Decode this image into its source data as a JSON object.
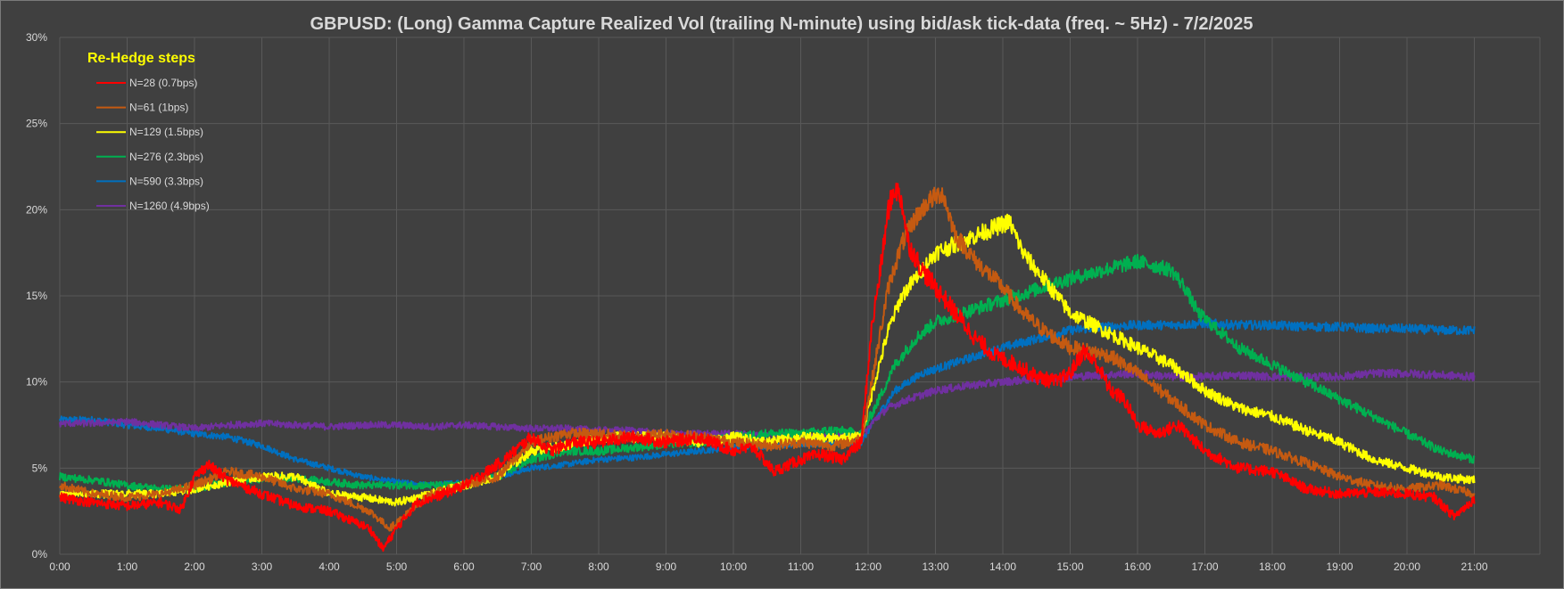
{
  "chart_data": {
    "type": "line",
    "title": "GBPUSD: (Long) Gamma Capture Realized Vol (trailing N-minute) using bid/ask tick-data (freq. ~ 5Hz) - 7/2/2025",
    "xlabel": "",
    "ylabel": "",
    "x_ticks": [
      "0:00",
      "1:00",
      "2:00",
      "3:00",
      "4:00",
      "5:00",
      "6:00",
      "7:00",
      "8:00",
      "9:00",
      "10:00",
      "11:00",
      "12:00",
      "13:00",
      "14:00",
      "15:00",
      "16:00",
      "17:00",
      "18:00",
      "19:00",
      "20:00",
      "21:00"
    ],
    "y_ticks": [
      "0%",
      "5%",
      "10%",
      "15%",
      "20%",
      "25%",
      "30%"
    ],
    "xlim": [
      0,
      21.5
    ],
    "ylim": [
      0,
      30
    ],
    "grid": true,
    "legend": {
      "title": "Re-Hedge steps",
      "position": "top-left"
    },
    "series": [
      {
        "name": "N=28 (0.7bps)",
        "color": "#ff0000",
        "x": [
          0,
          0.5,
          1,
          1.5,
          1.8,
          2,
          2.2,
          2.5,
          3,
          3.5,
          4,
          4.3,
          4.6,
          4.8,
          5,
          5.3,
          5.7,
          6,
          6.3,
          6.6,
          7,
          7.3,
          7.6,
          8,
          8.5,
          9,
          9.5,
          10,
          10.3,
          10.6,
          11,
          11.3,
          11.6,
          11.9,
          12.05,
          12.2,
          12.3,
          12.4,
          12.5,
          12.6,
          12.8,
          13,
          13.3,
          13.6,
          13.9,
          14.2,
          14.5,
          14.8,
          15,
          15.2,
          15.4,
          15.6,
          15.8,
          16,
          16.3,
          16.6,
          17,
          17.5,
          18,
          18.5,
          19,
          19.5,
          20,
          20.4,
          20.7,
          21
        ],
        "y": [
          3.3,
          3.0,
          2.8,
          3.0,
          2.6,
          4.5,
          5.2,
          4.3,
          3.5,
          2.8,
          2.5,
          2.0,
          1.5,
          0.3,
          1.5,
          3.0,
          3.5,
          4.0,
          4.7,
          5.5,
          6.8,
          6.0,
          6.5,
          6.5,
          6.8,
          6.5,
          6.8,
          6.0,
          6.2,
          4.8,
          5.5,
          5.8,
          5.5,
          6.5,
          13.0,
          17.0,
          20.0,
          21.3,
          20.5,
          18.0,
          16.5,
          15.5,
          14.0,
          12.5,
          11.5,
          11.0,
          10.3,
          10.0,
          10.5,
          11.8,
          11.0,
          9.5,
          9.0,
          7.5,
          7.0,
          7.5,
          6.0,
          5.0,
          4.8,
          3.8,
          3.5,
          3.6,
          3.5,
          3.3,
          2.2,
          3.2
        ]
      },
      {
        "name": "N=61 (1bps)",
        "color": "#c55a11",
        "x": [
          0,
          0.5,
          1,
          1.5,
          2,
          2.5,
          3,
          3.5,
          4,
          4.3,
          4.6,
          4.9,
          5.2,
          5.5,
          6,
          6.5,
          7,
          7.5,
          8,
          8.5,
          9,
          9.5,
          10,
          10.5,
          11,
          11.5,
          11.9,
          12.1,
          12.3,
          12.5,
          12.7,
          12.9,
          13.1,
          13.3,
          13.6,
          14,
          14.3,
          14.6,
          15,
          15.3,
          15.6,
          16,
          16.5,
          17,
          17.5,
          18,
          18.5,
          19,
          19.5,
          20,
          20.5,
          21
        ],
        "y": [
          4.0,
          3.5,
          3.3,
          3.5,
          4.0,
          4.8,
          4.5,
          3.8,
          3.5,
          3.0,
          2.5,
          1.5,
          2.5,
          3.5,
          4.0,
          4.5,
          6.5,
          7.0,
          7.0,
          6.8,
          7.0,
          6.8,
          6.5,
          6.3,
          6.5,
          6.3,
          6.7,
          11.0,
          15.5,
          18.0,
          19.5,
          20.5,
          21.0,
          18.5,
          17.0,
          15.5,
          14.0,
          13.0,
          12.0,
          11.8,
          11.5,
          10.5,
          9.0,
          7.5,
          6.5,
          6.0,
          5.3,
          4.5,
          4.0,
          3.8,
          4.0,
          3.5
        ]
      },
      {
        "name": "N=129 (1.5bps)",
        "color": "#ffff00",
        "x": [
          0,
          0.5,
          1,
          1.5,
          2,
          2.5,
          3,
          3.5,
          4,
          4.5,
          5,
          5.5,
          6,
          6.5,
          7,
          7.5,
          8,
          8.5,
          9,
          9.5,
          10,
          10.5,
          11,
          11.5,
          11.9,
          12.1,
          12.3,
          12.5,
          12.7,
          13,
          13.3,
          13.6,
          13.9,
          14.1,
          14.3,
          14.6,
          15,
          15.5,
          16,
          16.5,
          17,
          17.5,
          18,
          18.5,
          19,
          19.5,
          20,
          20.5,
          21
        ],
        "y": [
          3.5,
          3.5,
          3.5,
          3.5,
          3.8,
          4.2,
          4.5,
          4.5,
          3.5,
          3.3,
          3.0,
          3.5,
          4.0,
          4.5,
          6.0,
          6.3,
          6.8,
          6.8,
          6.8,
          6.5,
          6.8,
          6.5,
          6.8,
          6.7,
          6.8,
          10.0,
          13.0,
          15.0,
          16.0,
          17.5,
          18.0,
          18.5,
          19.0,
          19.3,
          17.5,
          16.0,
          14.0,
          13.0,
          12.0,
          11.0,
          9.5,
          8.5,
          8.0,
          7.2,
          6.5,
          5.5,
          5.0,
          4.5,
          4.3
        ]
      },
      {
        "name": "N=276 (2.3bps)",
        "color": "#00b050",
        "x": [
          0,
          0.5,
          1,
          1.5,
          2,
          2.5,
          3,
          3.5,
          4,
          4.5,
          5,
          5.5,
          6,
          6.5,
          7,
          7.5,
          8,
          8.5,
          9,
          9.5,
          10,
          10.5,
          11,
          11.5,
          11.9,
          12.1,
          12.4,
          12.7,
          13,
          13.4,
          13.8,
          14.2,
          14.6,
          15,
          15.5,
          16,
          16.5,
          16.7,
          16.9,
          17.2,
          17.5,
          18,
          18.5,
          19,
          19.5,
          20,
          20.5,
          21
        ],
        "y": [
          4.5,
          4.3,
          4.0,
          3.8,
          3.8,
          4.2,
          4.4,
          4.4,
          4.2,
          4.0,
          4.0,
          4.0,
          4.0,
          4.5,
          5.5,
          6.0,
          6.0,
          6.2,
          6.4,
          6.5,
          6.8,
          7.0,
          7.0,
          7.2,
          7.0,
          8.5,
          11.0,
          12.5,
          13.5,
          14.0,
          14.5,
          15.0,
          15.5,
          16.0,
          16.5,
          17.0,
          16.5,
          15.5,
          14.0,
          13.0,
          12.0,
          11.0,
          10.0,
          9.0,
          8.0,
          7.0,
          6.0,
          5.5
        ]
      },
      {
        "name": "N=590 (3.3bps)",
        "color": "#0070c0",
        "x": [
          0,
          0.5,
          1,
          1.5,
          2,
          2.5,
          3,
          3.5,
          4,
          4.5,
          5,
          5.5,
          6,
          6.5,
          7,
          7.5,
          8,
          8.5,
          9,
          9.5,
          10,
          10.5,
          11,
          11.5,
          11.9,
          12.1,
          12.4,
          12.8,
          13.2,
          13.6,
          14,
          14.5,
          15,
          15.5,
          16,
          16.5,
          17,
          17.5,
          18,
          18.5,
          19,
          19.5,
          20,
          20.5,
          21
        ],
        "y": [
          7.8,
          7.8,
          7.5,
          7.3,
          7.0,
          6.8,
          6.3,
          5.5,
          5.0,
          4.5,
          4.2,
          4.0,
          4.2,
          4.5,
          5.0,
          5.2,
          5.5,
          5.6,
          5.8,
          6.0,
          6.2,
          6.3,
          6.4,
          6.4,
          6.5,
          7.8,
          9.5,
          10.5,
          11.0,
          11.5,
          12.0,
          12.5,
          13.0,
          13.2,
          13.3,
          13.3,
          13.4,
          13.3,
          13.3,
          13.2,
          13.2,
          13.1,
          13.1,
          13.0,
          13.0
        ]
      },
      {
        "name": "N=1260 (4.9bps)",
        "color": "#7030a0",
        "x": [
          0,
          0.5,
          1,
          1.5,
          2,
          2.5,
          3,
          3.5,
          4,
          4.5,
          5,
          5.5,
          6,
          6.5,
          7,
          7.5,
          8,
          8.5,
          9,
          9.5,
          10,
          10.5,
          11,
          11.5,
          11.9,
          12.1,
          12.3,
          12.6,
          13,
          13.5,
          14,
          14.5,
          15,
          15.5,
          16,
          16.5,
          17,
          17.5,
          18,
          18.5,
          19,
          19.5,
          20,
          20.5,
          21
        ],
        "y": [
          7.6,
          7.6,
          7.7,
          7.5,
          7.3,
          7.5,
          7.6,
          7.5,
          7.4,
          7.5,
          7.5,
          7.4,
          7.5,
          7.4,
          7.3,
          7.3,
          7.2,
          7.2,
          7.0,
          7.0,
          7.0,
          6.9,
          6.9,
          6.9,
          6.8,
          7.8,
          8.5,
          9.0,
          9.5,
          9.8,
          10.0,
          10.2,
          10.3,
          10.4,
          10.5,
          10.3,
          10.3,
          10.4,
          10.3,
          10.3,
          10.3,
          10.5,
          10.5,
          10.4,
          10.3
        ]
      }
    ]
  }
}
